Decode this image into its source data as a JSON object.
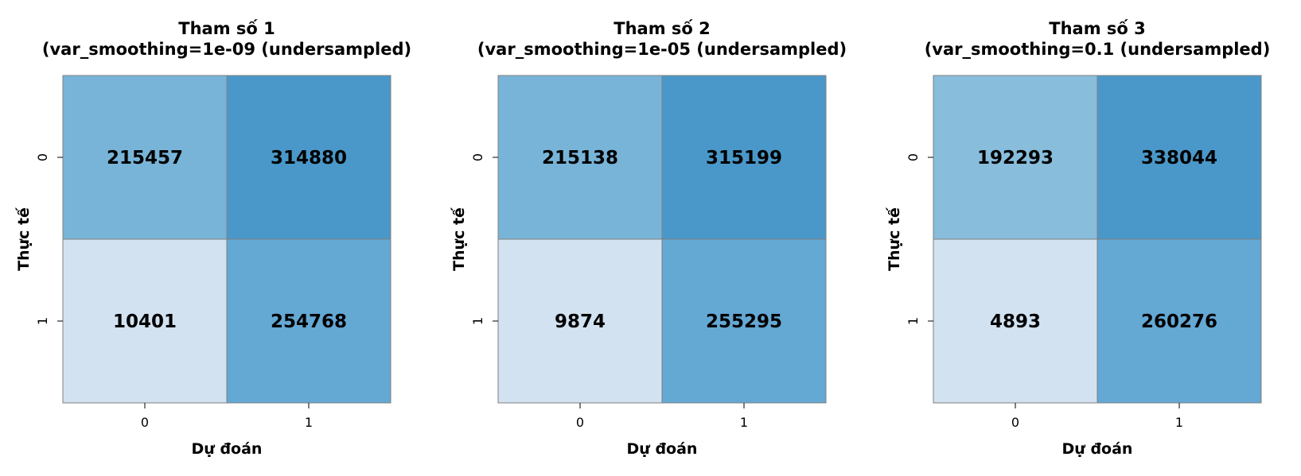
{
  "chart_data": [
    {
      "type": "heatmap",
      "title": "Tham số 1",
      "subtitle": "(var_smoothing=1e-09 (undersampled)",
      "xlabel": "Dự đoán",
      "ylabel": "Thực tế",
      "x_categories": [
        "0",
        "1"
      ],
      "y_categories": [
        "0",
        "1"
      ],
      "values": [
        [
          215457,
          314880
        ],
        [
          10401,
          254768
        ]
      ],
      "colors": [
        [
          "#78b4d8",
          "#4a98c9"
        ],
        [
          "#d2e2f1",
          "#64a8d4"
        ]
      ]
    },
    {
      "type": "heatmap",
      "title": "Tham số 2",
      "subtitle": "(var_smoothing=1e-05 (undersampled)",
      "xlabel": "Dự đoán",
      "ylabel": "Thực tế",
      "x_categories": [
        "0",
        "1"
      ],
      "y_categories": [
        "0",
        "1"
      ],
      "values": [
        [
          215138,
          315199
        ],
        [
          9874,
          255295
        ]
      ],
      "colors": [
        [
          "#78b4d8",
          "#4a98c9"
        ],
        [
          "#d2e2f1",
          "#64a8d4"
        ]
      ]
    },
    {
      "type": "heatmap",
      "title": "Tham số 3",
      "subtitle": "(var_smoothing=0.1 (undersampled)",
      "xlabel": "Dự đoán",
      "ylabel": "Thực tế",
      "x_categories": [
        "0",
        "1"
      ],
      "y_categories": [
        "0",
        "1"
      ],
      "values": [
        [
          192293,
          338044
        ],
        [
          4893,
          260276
        ]
      ],
      "colors": [
        [
          "#88bddc",
          "#4a98c9"
        ],
        [
          "#d2e2f1",
          "#64a8d4"
        ]
      ]
    }
  ]
}
